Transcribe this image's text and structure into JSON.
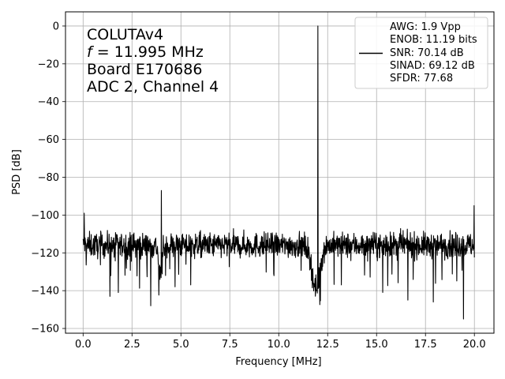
{
  "chart_data": {
    "type": "line",
    "xlabel": "Frequency [MHz]",
    "ylabel": "PSD [dB]",
    "xlim": [
      -0.9,
      21.0
    ],
    "ylim": [
      -162.5,
      7.5
    ],
    "x_ticks": [
      0.0,
      2.5,
      5.0,
      7.5,
      10.0,
      12.5,
      15.0,
      17.5,
      20.0
    ],
    "x_tick_labels": [
      "0.0",
      "2.5",
      "5.0",
      "7.5",
      "10.0",
      "12.5",
      "15.0",
      "17.5",
      "20.0"
    ],
    "y_ticks": [
      0,
      -20,
      -40,
      -60,
      -80,
      -100,
      -120,
      -140,
      -160
    ],
    "y_tick_labels": [
      "0",
      "−20",
      "−40",
      "−60",
      "−80",
      "−100",
      "−120",
      "−140",
      "−160"
    ],
    "grid": true,
    "annotation": {
      "product": "COLUTAv4",
      "freq_symbol": "f",
      "freq_rest": " = 11.995 MHz",
      "board": "Board E170686",
      "channel": "ADC 2, Channel 4"
    },
    "legend": {
      "placement": "top-right",
      "lines": [
        "AWG: 1.9 Vpp",
        "ENOB: 11.19 bits",
        "SNR: 70.14 dB",
        "SINAD: 69.12 dB",
        "SFDR: 77.68"
      ]
    },
    "spectrum": {
      "x_range_mhz": [
        0.0,
        20.0
      ],
      "noise_floor_db": -116,
      "noise_spread_db": 6,
      "spikes": [
        {
          "x": 0.05,
          "y": -99
        },
        {
          "x": 1.37,
          "y": -143
        },
        {
          "x": 1.8,
          "y": -141
        },
        {
          "x": 3.46,
          "y": -148
        },
        {
          "x": 4.0,
          "y": -87
        },
        {
          "x": 12.0,
          "y": 0
        },
        {
          "x": 16.6,
          "y": -145
        },
        {
          "x": 17.9,
          "y": -146
        },
        {
          "x": 19.45,
          "y": -155
        },
        {
          "x": 19.98,
          "y": -95
        }
      ],
      "bumps": [
        {
          "center": 3.95,
          "width": 0.12,
          "peak_db": -100
        },
        {
          "center": 11.9,
          "width": 0.28,
          "peak_db": -93
        }
      ]
    },
    "series_color": "#000000"
  }
}
